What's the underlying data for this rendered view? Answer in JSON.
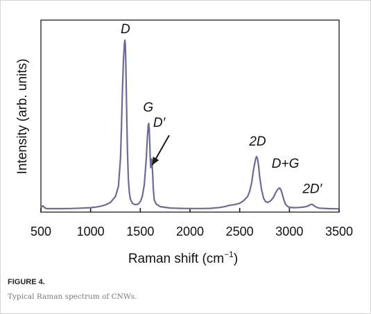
{
  "figure": {
    "label": "FIGURE 4.",
    "caption": "Typical Raman spectrum of CNWs."
  },
  "colors": {
    "spectrum_line": "#6b6b93",
    "axis": "#1a1a1a",
    "text": "#111111"
  },
  "chart_data": {
    "type": "line",
    "title": "",
    "xlabel": "Raman shift (cm",
    "xlabel_sup": "−1",
    "xlabel_close": ")",
    "ylabel": "Intensity (arb. units)",
    "xlim": [
      500,
      3500
    ],
    "ylim": [
      0,
      1.0
    ],
    "x_ticks": [
      500,
      1000,
      1500,
      2000,
      2500,
      3000,
      3500
    ],
    "x_tick_labels": [
      "500",
      "1000",
      "1500",
      "2000",
      "2500",
      "3000",
      "3500"
    ],
    "y_ticks_shown": false,
    "grid": false,
    "legend": "none",
    "series": [
      {
        "x": [
          500,
          520,
          540,
          560,
          600,
          700,
          800,
          900,
          1000,
          1050,
          1100,
          1150,
          1200,
          1250,
          1280,
          1300,
          1310,
          1320,
          1330,
          1340,
          1345,
          1350,
          1355,
          1360,
          1370,
          1380,
          1390,
          1400,
          1420,
          1440,
          1460,
          1480,
          1500,
          1520,
          1540,
          1560,
          1570,
          1580,
          1585,
          1590,
          1595,
          1600,
          1605,
          1610,
          1615,
          1620,
          1625,
          1630,
          1640,
          1660,
          1700,
          1800,
          1900,
          2000,
          2100,
          2200,
          2300,
          2350,
          2400,
          2450,
          2500,
          2540,
          2580,
          2600,
          2620,
          2640,
          2660,
          2670,
          2680,
          2690,
          2700,
          2720,
          2740,
          2760,
          2780,
          2800,
          2820,
          2840,
          2860,
          2880,
          2900,
          2910,
          2920,
          2930,
          2940,
          2950,
          2960,
          2980,
          3000,
          3050,
          3100,
          3150,
          3180,
          3200,
          3220,
          3240,
          3260,
          3300,
          3400,
          3500
        ],
        "y": [
          0.015,
          0.025,
          0.012,
          0.008,
          0.008,
          0.008,
          0.009,
          0.011,
          0.014,
          0.017,
          0.022,
          0.03,
          0.045,
          0.08,
          0.14,
          0.3,
          0.48,
          0.7,
          0.88,
          0.98,
          1.0,
          0.97,
          0.85,
          0.66,
          0.36,
          0.18,
          0.1,
          0.065,
          0.04,
          0.033,
          0.032,
          0.036,
          0.05,
          0.08,
          0.15,
          0.3,
          0.42,
          0.5,
          0.51,
          0.48,
          0.4,
          0.3,
          0.25,
          0.3,
          0.3,
          0.26,
          0.2,
          0.13,
          0.06,
          0.035,
          0.02,
          0.012,
          0.01,
          0.009,
          0.009,
          0.01,
          0.015,
          0.02,
          0.028,
          0.032,
          0.04,
          0.055,
          0.08,
          0.11,
          0.16,
          0.24,
          0.3,
          0.315,
          0.3,
          0.26,
          0.2,
          0.12,
          0.07,
          0.05,
          0.045,
          0.05,
          0.06,
          0.075,
          0.1,
          0.12,
          0.13,
          0.125,
          0.11,
          0.09,
          0.07,
          0.05,
          0.035,
          0.022,
          0.016,
          0.014,
          0.015,
          0.018,
          0.022,
          0.028,
          0.034,
          0.03,
          0.02,
          0.011,
          0.008,
          0.007
        ]
      }
    ],
    "annotations": [
      {
        "text": "D",
        "x": 1350,
        "y": 1.04
      },
      {
        "text": "G",
        "x": 1580,
        "y": 0.58
      },
      {
        "text": "D′",
        "x": 1690,
        "y": 0.49
      },
      {
        "text": "2D",
        "x": 2680,
        "y": 0.38
      },
      {
        "text": "D+G",
        "x": 2960,
        "y": 0.25
      },
      {
        "text": "2D′",
        "x": 3230,
        "y": 0.1
      }
    ],
    "arrows": [
      {
        "from_x": 1790,
        "from_y": 0.44,
        "to_x": 1620,
        "to_y": 0.265
      }
    ]
  }
}
